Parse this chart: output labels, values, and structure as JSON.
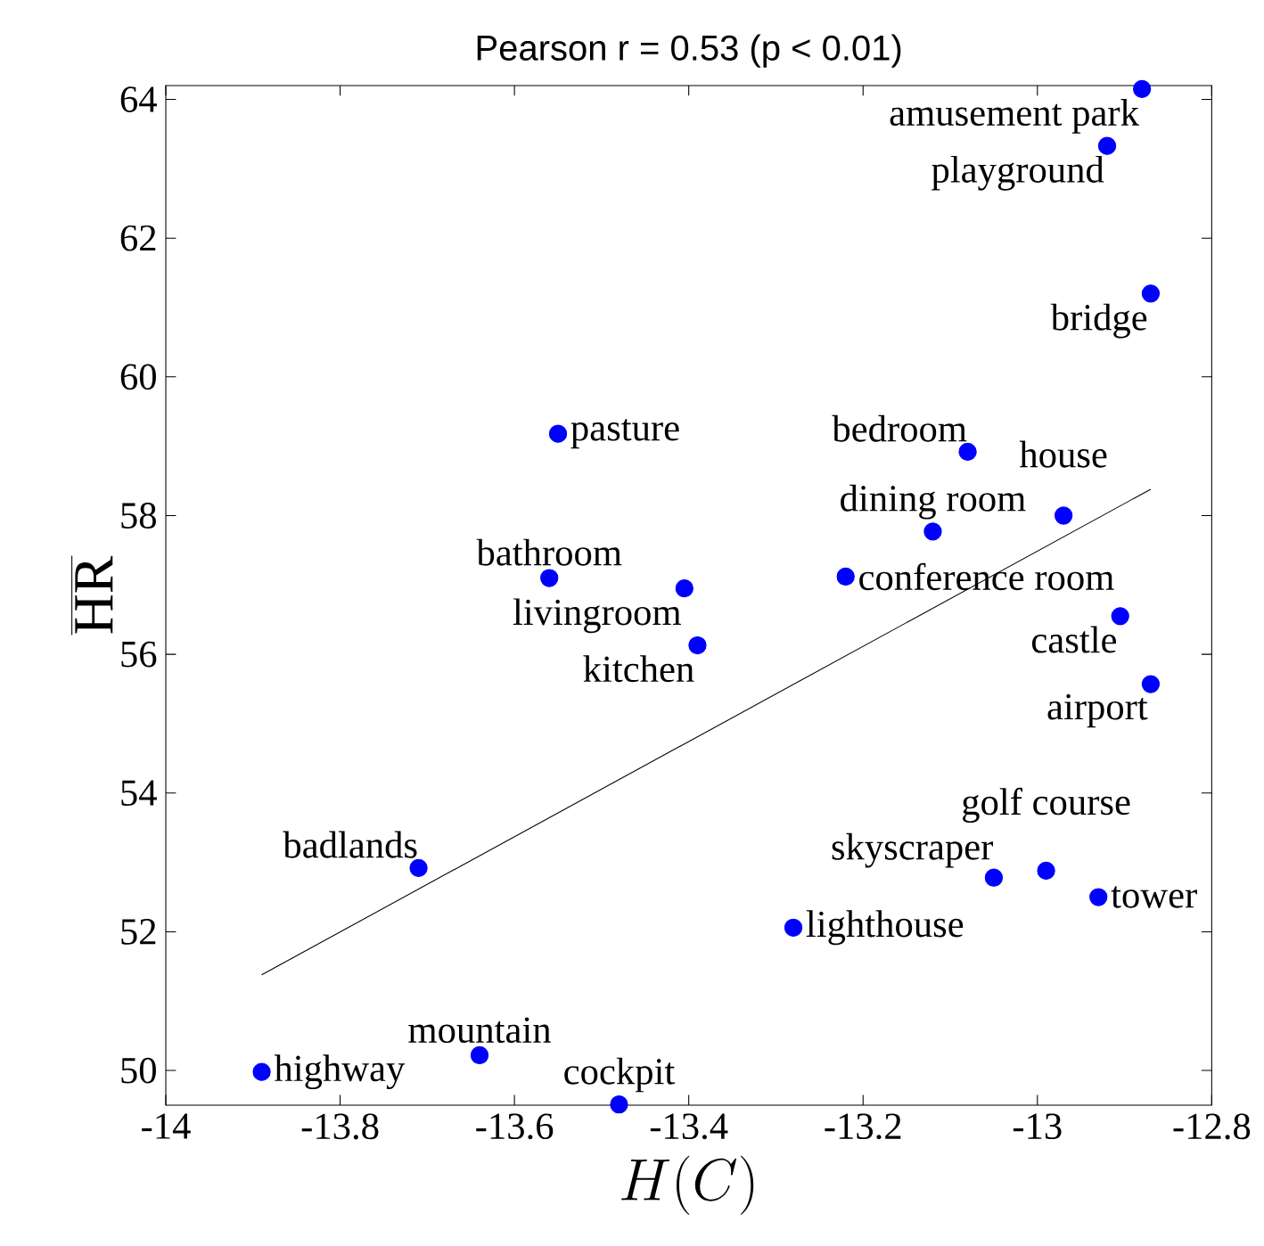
{
  "chart_data": {
    "type": "scatter",
    "title": "Pearson r = 0.53 (p < 0.01)",
    "xlabel": "H(C)",
    "ylabel": "\\overline{\\mathrm{HR}}",
    "xlim": [
      -14,
      -12.8
    ],
    "ylim": [
      49.5,
      64.2
    ],
    "xticks": [
      -14,
      -13.8,
      -13.6,
      -13.4,
      -13.2,
      -13,
      -12.8
    ],
    "yticks": [
      50,
      52,
      54,
      56,
      58,
      60,
      62,
      64
    ],
    "grid": false,
    "series": [
      {
        "type": "scatter",
        "marker": "circle",
        "color": "#0000ff",
        "x": [
          -12.88,
          -12.92,
          -12.87,
          -13.55,
          -13.08,
          -12.97,
          -13.12,
          -13.405,
          -13.56,
          -13.22,
          -12.905,
          -13.39,
          -12.87,
          -13.71,
          -13.05,
          -12.99,
          -12.93,
          -13.28,
          -13.64,
          -13.89,
          -13.48
        ],
        "values": [
          64.15,
          63.33,
          61.2,
          59.18,
          58.92,
          58.0,
          57.77,
          56.95,
          57.1,
          57.12,
          56.55,
          56.13,
          55.57,
          52.92,
          52.78,
          52.88,
          52.5,
          52.06,
          50.22,
          49.98,
          49.51
        ]
      },
      {
        "type": "line",
        "color": "#000000",
        "x": [
          -13.89,
          -12.87
        ],
        "values": [
          51.38,
          58.38
        ]
      }
    ],
    "annotations": [
      {
        "text": "amusement park",
        "x": -12.88,
        "y": 64.15
      },
      {
        "text": "playground",
        "x": -12.92,
        "y": 63.33
      },
      {
        "text": "bridge",
        "x": -12.87,
        "y": 61.2
      },
      {
        "text": "pasture",
        "x": -13.55,
        "y": 59.18
      },
      {
        "text": "bedroom",
        "x": -13.08,
        "y": 58.92
      },
      {
        "text": "house",
        "x": -12.97,
        "y": 58.0
      },
      {
        "text": "dining room",
        "x": -13.12,
        "y": 57.77
      },
      {
        "text": "livingroom",
        "x": -13.405,
        "y": 56.95
      },
      {
        "text": "bathroom",
        "x": -13.56,
        "y": 57.1
      },
      {
        "text": "conference room",
        "x": -13.22,
        "y": 57.12
      },
      {
        "text": "castle",
        "x": -12.905,
        "y": 56.55
      },
      {
        "text": "kitchen",
        "x": -13.39,
        "y": 56.13
      },
      {
        "text": "airport",
        "x": -12.87,
        "y": 55.57
      },
      {
        "text": "badlands",
        "x": -13.71,
        "y": 52.92
      },
      {
        "text": "skyscraper",
        "x": -13.05,
        "y": 52.78
      },
      {
        "text": "golf course",
        "x": -12.99,
        "y": 52.88
      },
      {
        "text": "tower",
        "x": -12.93,
        "y": 52.5
      },
      {
        "text": "lighthouse",
        "x": -13.28,
        "y": 52.06
      },
      {
        "text": "mountain",
        "x": -13.64,
        "y": 50.22
      },
      {
        "text": "highway",
        "x": -13.89,
        "y": 49.98
      },
      {
        "text": "cockpit",
        "x": -13.48,
        "y": 49.51
      }
    ]
  }
}
